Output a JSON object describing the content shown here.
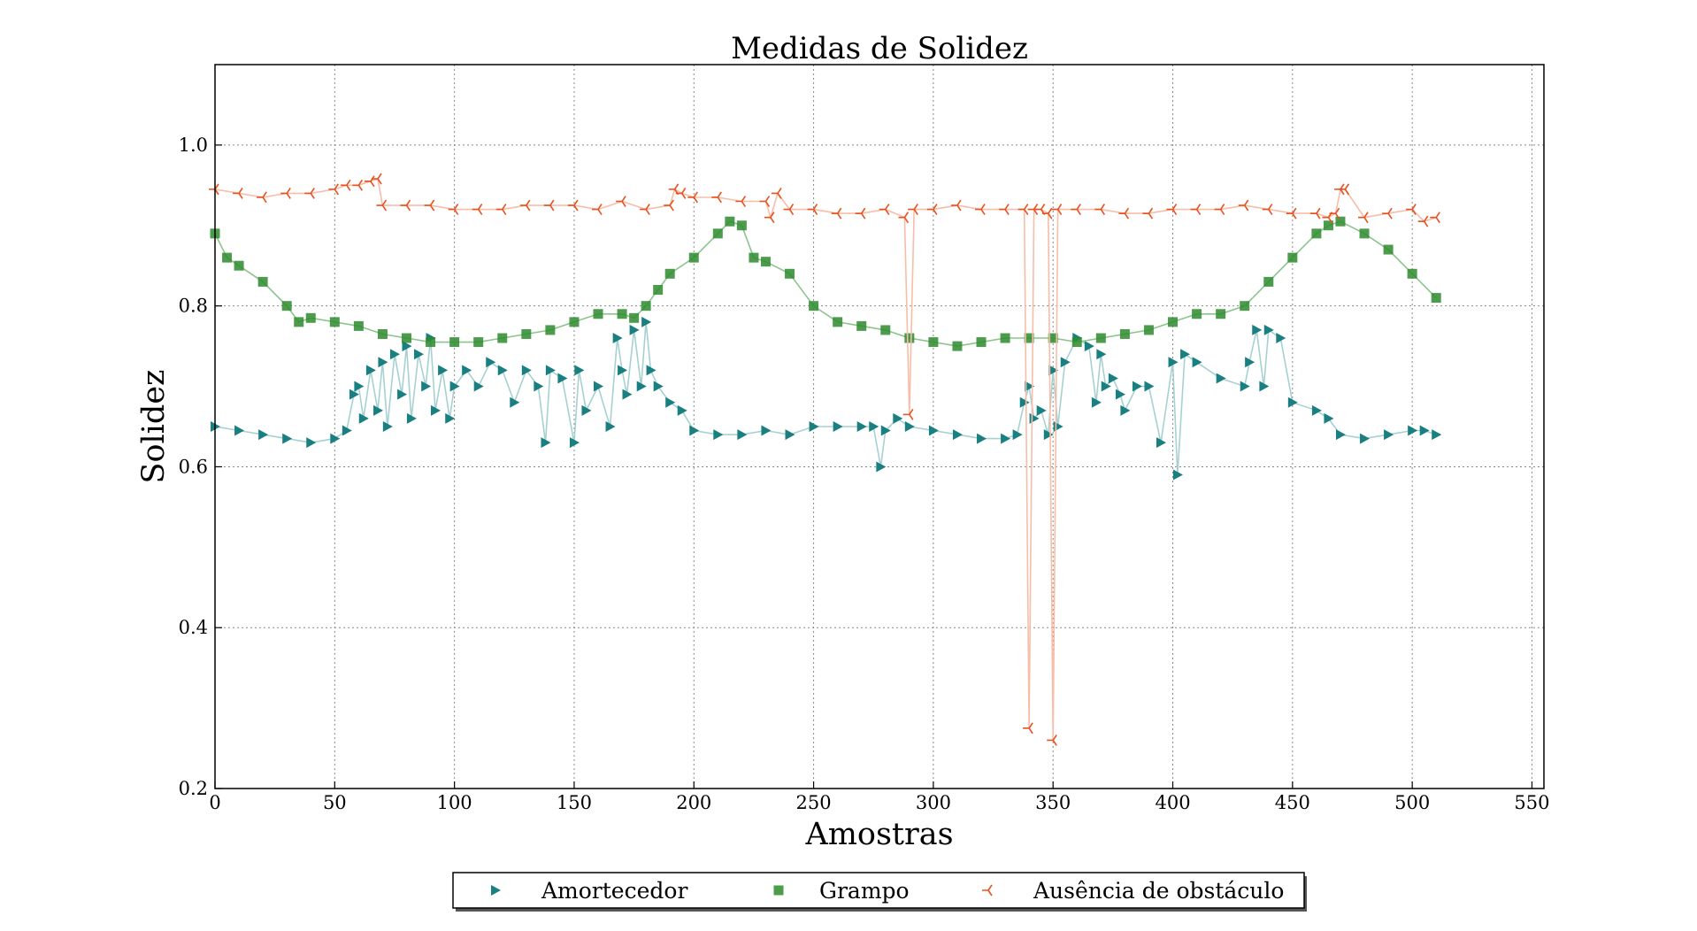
{
  "chart_data": {
    "type": "scatter",
    "title": "Medidas de Solidez",
    "xlabel": "Amostras",
    "ylabel": "Solidez",
    "xlim": [
      0,
      555
    ],
    "ylim": [
      0.2,
      1.1
    ],
    "xticks": [
      0,
      50,
      100,
      150,
      200,
      250,
      300,
      350,
      400,
      450,
      500,
      550
    ],
    "yticks": [
      0.2,
      0.4,
      0.6,
      0.8,
      1.0
    ],
    "xtick_labels": [
      "0",
      "50",
      "100",
      "150",
      "200",
      "250",
      "300",
      "350",
      "400",
      "450",
      "500",
      "550"
    ],
    "ytick_labels": [
      "0.2",
      "0.4",
      "0.6",
      "0.8",
      "1.0"
    ],
    "grid": true,
    "legend_position": "bottom-center",
    "series": [
      {
        "name": "Amortecedor",
        "marker": "triangle-right",
        "color": "#1a7f80",
        "line_color": "#a7d1d1",
        "x": [
          0,
          10,
          20,
          30,
          40,
          50,
          55,
          58,
          60,
          62,
          65,
          68,
          70,
          72,
          75,
          78,
          80,
          82,
          85,
          88,
          90,
          92,
          95,
          98,
          100,
          105,
          110,
          115,
          120,
          125,
          130,
          135,
          138,
          140,
          145,
          150,
          152,
          155,
          160,
          165,
          168,
          170,
          172,
          175,
          178,
          180,
          182,
          185,
          190,
          195,
          200,
          210,
          220,
          230,
          240,
          250,
          260,
          270,
          275,
          278,
          280,
          285,
          290,
          300,
          310,
          320,
          330,
          335,
          338,
          340,
          342,
          345,
          348,
          350,
          352,
          355,
          360,
          365,
          368,
          370,
          372,
          375,
          378,
          380,
          385,
          390,
          395,
          400,
          402,
          405,
          410,
          420,
          430,
          432,
          435,
          438,
          440,
          445,
          450,
          460,
          465,
          470,
          480,
          490,
          500,
          505,
          510
        ],
        "y": [
          0.65,
          0.645,
          0.64,
          0.635,
          0.63,
          0.635,
          0.645,
          0.69,
          0.7,
          0.66,
          0.72,
          0.67,
          0.73,
          0.65,
          0.74,
          0.69,
          0.75,
          0.66,
          0.74,
          0.7,
          0.76,
          0.67,
          0.72,
          0.66,
          0.7,
          0.72,
          0.7,
          0.73,
          0.72,
          0.68,
          0.72,
          0.7,
          0.63,
          0.72,
          0.71,
          0.63,
          0.72,
          0.67,
          0.7,
          0.65,
          0.76,
          0.72,
          0.69,
          0.77,
          0.7,
          0.78,
          0.72,
          0.7,
          0.68,
          0.67,
          0.645,
          0.64,
          0.64,
          0.645,
          0.64,
          0.65,
          0.65,
          0.65,
          0.65,
          0.6,
          0.645,
          0.66,
          0.65,
          0.645,
          0.64,
          0.635,
          0.635,
          0.64,
          0.68,
          0.7,
          0.66,
          0.67,
          0.64,
          0.72,
          0.65,
          0.73,
          0.76,
          0.75,
          0.68,
          0.74,
          0.7,
          0.71,
          0.69,
          0.67,
          0.7,
          0.7,
          0.63,
          0.73,
          0.59,
          0.74,
          0.73,
          0.71,
          0.7,
          0.73,
          0.77,
          0.7,
          0.77,
          0.76,
          0.68,
          0.67,
          0.66,
          0.64,
          0.635,
          0.64,
          0.645,
          0.645,
          0.64
        ]
      },
      {
        "name": "Grampo",
        "marker": "square",
        "color": "#2e8b2e",
        "line_color": "#8cc58c",
        "x": [
          0,
          5,
          10,
          20,
          30,
          35,
          40,
          50,
          60,
          70,
          80,
          90,
          100,
          110,
          120,
          130,
          140,
          150,
          160,
          170,
          175,
          180,
          185,
          190,
          200,
          210,
          215,
          220,
          225,
          230,
          240,
          250,
          260,
          270,
          280,
          290,
          300,
          310,
          320,
          330,
          340,
          350,
          360,
          370,
          380,
          390,
          400,
          410,
          420,
          430,
          440,
          450,
          460,
          465,
          470,
          480,
          490,
          500,
          510
        ],
        "y": [
          0.89,
          0.86,
          0.85,
          0.83,
          0.8,
          0.78,
          0.785,
          0.78,
          0.775,
          0.765,
          0.76,
          0.755,
          0.755,
          0.755,
          0.76,
          0.765,
          0.77,
          0.78,
          0.79,
          0.79,
          0.785,
          0.8,
          0.82,
          0.84,
          0.86,
          0.89,
          0.905,
          0.9,
          0.86,
          0.855,
          0.84,
          0.8,
          0.78,
          0.775,
          0.77,
          0.76,
          0.755,
          0.75,
          0.755,
          0.76,
          0.76,
          0.76,
          0.755,
          0.76,
          0.765,
          0.77,
          0.78,
          0.79,
          0.79,
          0.8,
          0.83,
          0.86,
          0.89,
          0.9,
          0.905,
          0.89,
          0.87,
          0.84,
          0.81
        ]
      },
      {
        "name": "Ausência de obstáculo",
        "marker": "tri-left",
        "color": "#e8501e",
        "line_color": "#f7bda8",
        "x": [
          0,
          10,
          20,
          30,
          40,
          50,
          55,
          60,
          65,
          68,
          70,
          80,
          90,
          100,
          110,
          120,
          130,
          140,
          150,
          160,
          170,
          180,
          190,
          192,
          195,
          200,
          210,
          220,
          230,
          232,
          235,
          240,
          250,
          260,
          270,
          280,
          288,
          290,
          292,
          300,
          310,
          320,
          330,
          338,
          340,
          342,
          345,
          348,
          350,
          352,
          360,
          370,
          380,
          390,
          400,
          410,
          420,
          430,
          440,
          450,
          460,
          465,
          468,
          470,
          472,
          480,
          490,
          500,
          505,
          510
        ],
        "y": [
          0.945,
          0.94,
          0.935,
          0.94,
          0.94,
          0.945,
          0.95,
          0.95,
          0.955,
          0.958,
          0.925,
          0.925,
          0.925,
          0.92,
          0.92,
          0.92,
          0.925,
          0.925,
          0.925,
          0.92,
          0.93,
          0.92,
          0.925,
          0.945,
          0.94,
          0.935,
          0.935,
          0.93,
          0.93,
          0.91,
          0.94,
          0.92,
          0.92,
          0.915,
          0.915,
          0.92,
          0.91,
          0.665,
          0.92,
          0.92,
          0.925,
          0.92,
          0.92,
          0.92,
          0.275,
          0.92,
          0.92,
          0.915,
          0.26,
          0.92,
          0.92,
          0.92,
          0.915,
          0.915,
          0.92,
          0.92,
          0.92,
          0.925,
          0.92,
          0.915,
          0.915,
          0.91,
          0.915,
          0.945,
          0.945,
          0.91,
          0.915,
          0.92,
          0.905,
          0.91
        ]
      }
    ]
  }
}
